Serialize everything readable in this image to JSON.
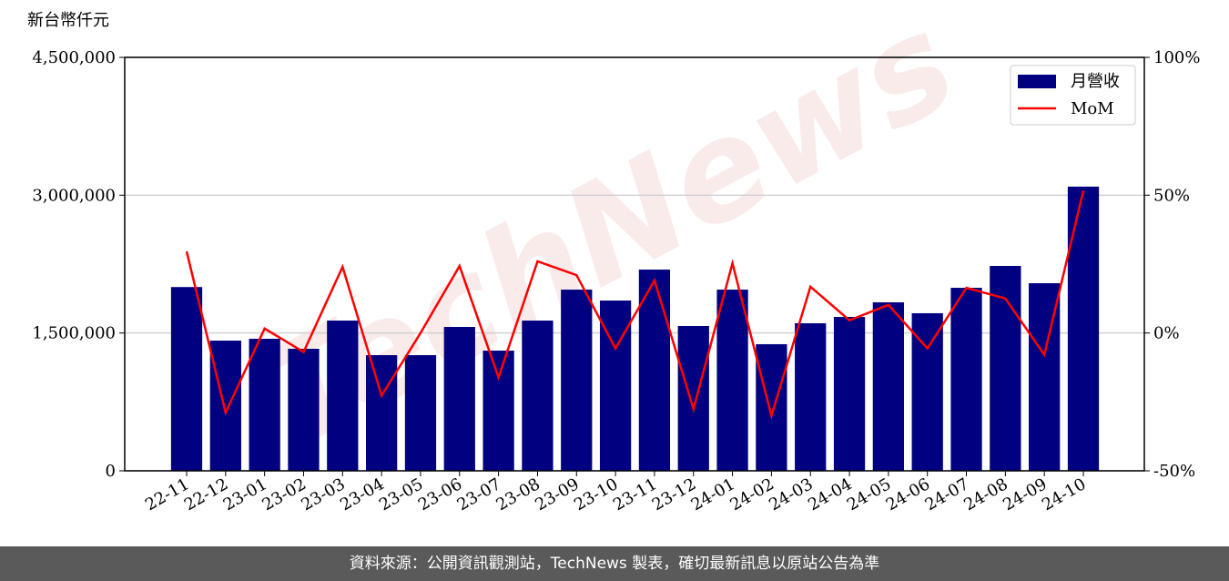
{
  "chart_data": {
    "type": "bar-line",
    "y_axis_label": "新台幣仟元",
    "watermark": "TechNews",
    "categories": [
      "22-11",
      "22-12",
      "23-01",
      "23-02",
      "23-03",
      "23-04",
      "23-05",
      "23-06",
      "23-07",
      "23-08",
      "23-09",
      "23-10",
      "23-11",
      "23-12",
      "24-01",
      "24-02",
      "24-03",
      "24-04",
      "24-05",
      "24-06",
      "24-07",
      "24-08",
      "24-09",
      "24-10"
    ],
    "series": [
      {
        "name": "月營收",
        "type": "bar",
        "color": "#000080",
        "values": [
          2000000,
          1417000,
          1437000,
          1328000,
          1635000,
          1259000,
          1259000,
          1566000,
          1308000,
          1635000,
          1972000,
          1853000,
          2190000,
          1576000,
          1972000,
          1378000,
          1606000,
          1675000,
          1834000,
          1715000,
          1992000,
          2230000,
          2042000,
          3093000
        ]
      },
      {
        "name": "MoM",
        "type": "line",
        "axis": "y2",
        "color": "#ff0000",
        "values": [
          29.6,
          -28.9,
          1.6,
          -6.9,
          24.0,
          -22.7,
          0,
          24.3,
          -16.1,
          26.0,
          21.0,
          -5.6,
          19.1,
          -27.6,
          25.3,
          -30.0,
          16.8,
          4.6,
          10.2,
          -5.6,
          16.4,
          12.5,
          -7.9,
          51.6
        ]
      }
    ],
    "ylim": [
      0,
      4500000
    ],
    "yticks": [
      0,
      {
        "value": 1500000,
        "label": "1,500,000"
      },
      {
        "value": 3000000,
        "label": "3,000,000"
      },
      {
        "value": 4500000,
        "label": "4,500,000"
      }
    ],
    "y2lim": [
      -50,
      100
    ],
    "y2ticks": [
      {
        "value": -50,
        "label": "-50%"
      },
      {
        "value": 0,
        "label": "0%"
      },
      {
        "value": 50,
        "label": "50%"
      },
      {
        "value": 100,
        "label": "100%"
      }
    ],
    "grid": true,
    "legend": "upper right"
  },
  "footer": "資料來源：公開資訊觀測站，TechNews 製表，確切最新訊息以原站公告為準"
}
